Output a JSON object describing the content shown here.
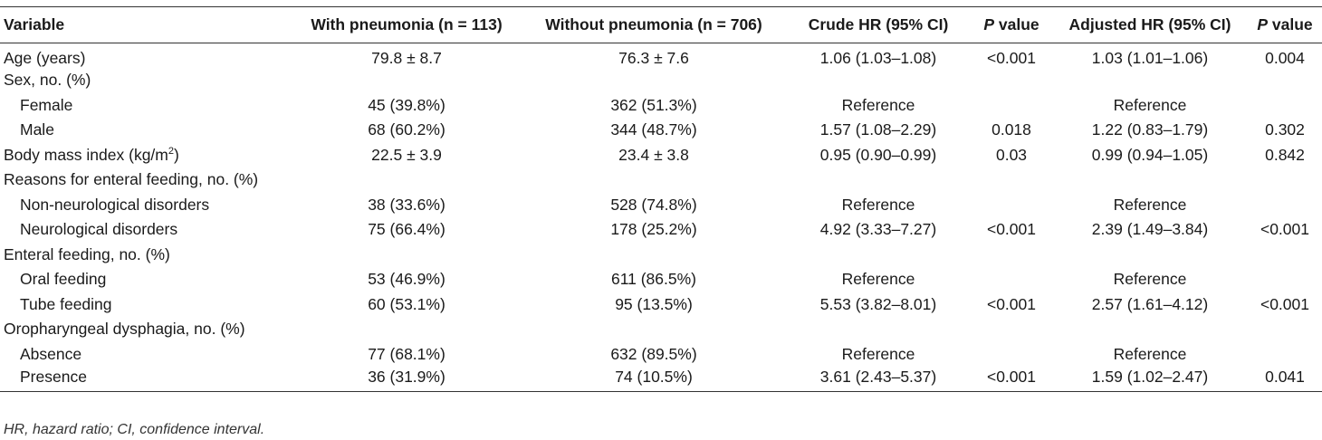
{
  "headers": {
    "variable": "Variable",
    "with_pneumonia": "With pneumonia (n = 113)",
    "without_pneumonia": "Without pneumonia (n = 706)",
    "crude_hr": "Crude HR (95% CI)",
    "p_value_label_italic": "P",
    "p_value_label_rest": " value",
    "adjusted_hr": "Adjusted HR (95% CI)"
  },
  "rows": [
    {
      "var": "Age (years)",
      "with": "79.8 ± 8.7",
      "without": "76.3 ± 7.6",
      "crude": "1.06 (1.03–1.08)",
      "p1": "<0.001",
      "adj": "1.03 (1.01–1.06)",
      "p2": "0.004"
    },
    {
      "var": "Sex, no. (%)",
      "with": "",
      "without": "",
      "crude": "",
      "p1": "",
      "adj": "",
      "p2": ""
    },
    {
      "var": "Female",
      "with": "45 (39.8%)",
      "without": "362 (51.3%)",
      "crude": "Reference",
      "p1": "",
      "adj": "Reference",
      "p2": ""
    },
    {
      "var": "Male",
      "with": "68 (60.2%)",
      "without": "344 (48.7%)",
      "crude": "1.57 (1.08–2.29)",
      "p1": "0.018",
      "adj": "1.22 (0.83–1.79)",
      "p2": "0.302"
    },
    {
      "var": "Body mass index (kg/m",
      "var_sup": "2",
      "var_end": ")",
      "with": "22.5 ± 3.9",
      "without": "23.4 ± 3.8",
      "crude": "0.95 (0.90–0.99)",
      "p1": "0.03",
      "adj": "0.99 (0.94–1.05)",
      "p2": "0.842"
    },
    {
      "var": "Reasons for enteral feeding, no. (%)",
      "with": "",
      "without": "",
      "crude": "",
      "p1": "",
      "adj": "",
      "p2": ""
    },
    {
      "var": "Non-neurological disorders",
      "with": "38 (33.6%)",
      "without": "528 (74.8%)",
      "crude": "Reference",
      "p1": "",
      "adj": "Reference",
      "p2": ""
    },
    {
      "var": "Neurological disorders",
      "with": "75 (66.4%)",
      "without": "178 (25.2%)",
      "crude": "4.92 (3.33–7.27)",
      "p1": "<0.001",
      "adj": "2.39 (1.49–3.84)",
      "p2": "<0.001"
    },
    {
      "var": "Enteral feeding, no. (%)",
      "with": "",
      "without": "",
      "crude": "",
      "p1": "",
      "adj": "",
      "p2": ""
    },
    {
      "var": "Oral feeding",
      "with": "53 (46.9%)",
      "without": "611 (86.5%)",
      "crude": "Reference",
      "p1": "",
      "adj": "Reference",
      "p2": ""
    },
    {
      "var": "Tube feeding",
      "with": "60 (53.1%)",
      "without": "95 (13.5%)",
      "crude": "5.53 (3.82–8.01)",
      "p1": "<0.001",
      "adj": "2.57 (1.61–4.12)",
      "p2": "<0.001"
    },
    {
      "var": "Oropharyngeal dysphagia, no. (%)",
      "with": "",
      "without": "",
      "crude": "",
      "p1": "",
      "adj": "",
      "p2": ""
    },
    {
      "var": "Absence",
      "with": "77 (68.1%)",
      "without": "632 (89.5%)",
      "crude": "Reference",
      "p1": "",
      "adj": "Reference",
      "p2": ""
    },
    {
      "var": "Presence",
      "with": "36 (31.9%)",
      "without": "74 (10.5%)",
      "crude": "3.61 (2.43–5.37)",
      "p1": "<0.001",
      "adj": "1.59 (1.02–2.47)",
      "p2": "0.041"
    }
  ],
  "footnote": "HR, hazard ratio; CI, confidence interval."
}
